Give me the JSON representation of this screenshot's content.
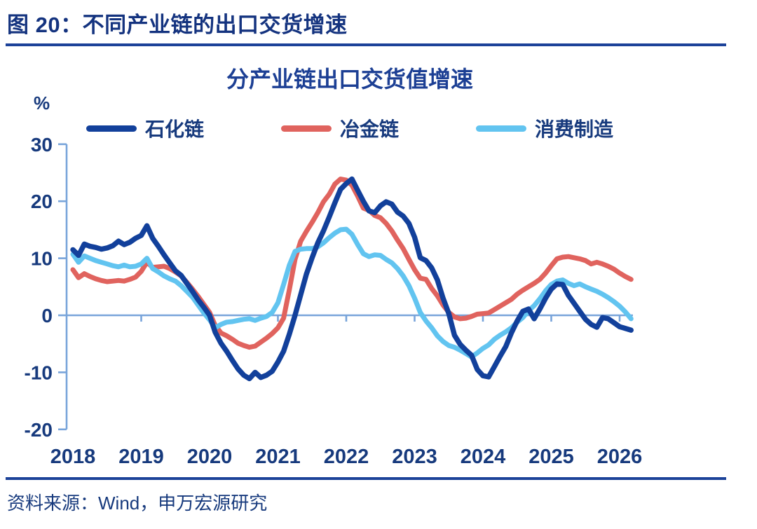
{
  "figure": {
    "header": "图 20：不同产业链的出口交货增速",
    "source": "资料来源：Wind，申万宏源研究"
  },
  "chart_data": {
    "type": "line",
    "title": "分产业链出口交货值增速",
    "unit_label": "%",
    "xlabel": "",
    "ylabel": "%",
    "x_ticks": [
      2018,
      2019,
      2020,
      2021,
      2022,
      2023,
      2024,
      2025,
      2026
    ],
    "y_ticks": [
      30,
      20,
      10,
      0,
      -10,
      -20
    ],
    "ylim": [
      -20,
      30
    ],
    "xlim": [
      2018,
      2026.4
    ],
    "grid": false,
    "legend_position": "top",
    "x_start_year": 2018,
    "x_step_months": 1,
    "colors": {
      "axis": "#78a4da",
      "text": "#173a7d"
    },
    "series": [
      {
        "name": "石化链",
        "color": "#12409b",
        "values": [
          11.5,
          10.5,
          12.5,
          12.1,
          11.9,
          11.6,
          11.8,
          12.2,
          13.0,
          12.4,
          12.8,
          13.5,
          14.0,
          15.7,
          13.5,
          12.1,
          10.6,
          9.2,
          7.8,
          7.0,
          5.6,
          4.2,
          2.7,
          1.4,
          0.0,
          -3.0,
          -4.9,
          -6.3,
          -7.9,
          -9.4,
          -10.5,
          -11.1,
          -10.0,
          -10.9,
          -10.5,
          -9.8,
          -8.2,
          -6.3,
          -3.3,
          0.0,
          3.6,
          7.2,
          10.1,
          12.7,
          14.8,
          17.2,
          19.7,
          22.1,
          23.1,
          23.9,
          21.9,
          20.0,
          18.3,
          18.0,
          19.2,
          19.9,
          19.5,
          18.1,
          17.4,
          16.1,
          13.7,
          10.1,
          9.6,
          8.3,
          6.2,
          3.0,
          0.3,
          -3.5,
          -5.1,
          -6.1,
          -7.0,
          -9.5,
          -10.6,
          -10.8,
          -9.0,
          -7.2,
          -5.5,
          -3.1,
          -1.0,
          0.7,
          1.1,
          -0.6,
          1.1,
          3.0,
          4.6,
          5.5,
          5.4,
          3.5,
          2.1,
          0.7,
          -0.7,
          -1.6,
          -2.1,
          -0.4,
          -0.6,
          -1.3,
          -2.0,
          -2.3,
          -2.6
        ]
      },
      {
        "name": "冶金链",
        "color": "#e0635e",
        "values": [
          8.0,
          6.6,
          7.3,
          6.8,
          6.4,
          6.1,
          5.9,
          6.0,
          6.1,
          6.0,
          6.3,
          6.7,
          7.7,
          9.3,
          8.4,
          8.5,
          8.6,
          8.2,
          7.6,
          6.9,
          5.8,
          4.6,
          3.3,
          1.9,
          0.5,
          -1.8,
          -3.1,
          -3.6,
          -4.2,
          -4.9,
          -5.3,
          -5.6,
          -5.4,
          -4.7,
          -4.0,
          -3.2,
          -2.2,
          -0.5,
          4.5,
          9.8,
          13.0,
          14.7,
          16.3,
          18.0,
          19.9,
          21.2,
          23.0,
          23.9,
          23.7,
          22.8,
          20.9,
          18.8,
          18.4,
          17.5,
          17.1,
          16.1,
          14.8,
          13.2,
          11.7,
          9.8,
          8.0,
          6.5,
          6.3,
          4.7,
          3.4,
          1.8,
          0.5,
          -0.3,
          -0.6,
          -0.5,
          -0.2,
          0.2,
          0.3,
          0.4,
          1.0,
          1.6,
          2.2,
          2.8,
          3.7,
          4.4,
          5.0,
          5.6,
          6.3,
          7.4,
          8.7,
          9.9,
          10.2,
          10.3,
          10.1,
          9.9,
          9.6,
          9.0,
          9.3,
          9.0,
          8.6,
          8.1,
          7.4,
          6.8,
          6.3
        ]
      },
      {
        "name": "消费制造",
        "color": "#62c4f0",
        "values": [
          10.7,
          9.3,
          10.4,
          10.0,
          9.6,
          9.3,
          9.0,
          8.7,
          8.5,
          8.8,
          8.5,
          8.6,
          9.0,
          10.0,
          8.2,
          7.6,
          6.9,
          6.4,
          6.0,
          5.2,
          4.2,
          3.2,
          1.8,
          0.4,
          -0.8,
          -2.2,
          -1.6,
          -1.2,
          -1.1,
          -0.9,
          -0.7,
          -0.6,
          -0.9,
          -0.5,
          -0.2,
          0.5,
          2.2,
          5.4,
          8.8,
          11.2,
          11.6,
          11.7,
          11.7,
          12.0,
          12.7,
          13.6,
          14.4,
          15.0,
          15.1,
          14.2,
          12.4,
          10.8,
          10.3,
          10.6,
          10.5,
          9.8,
          9.2,
          8.2,
          6.9,
          5.2,
          3.0,
          0.5,
          -1.0,
          -2.2,
          -3.6,
          -4.6,
          -5.3,
          -5.6,
          -6.1,
          -6.7,
          -7.3,
          -6.6,
          -5.8,
          -5.2,
          -4.2,
          -3.5,
          -2.9,
          -2.2,
          -1.2,
          -0.4,
          0.8,
          1.7,
          2.9,
          4.3,
          5.4,
          6.0,
          6.2,
          5.6,
          5.2,
          5.5,
          5.0,
          4.6,
          4.2,
          3.7,
          3.1,
          2.4,
          1.6,
          0.6,
          -0.6
        ]
      }
    ]
  }
}
